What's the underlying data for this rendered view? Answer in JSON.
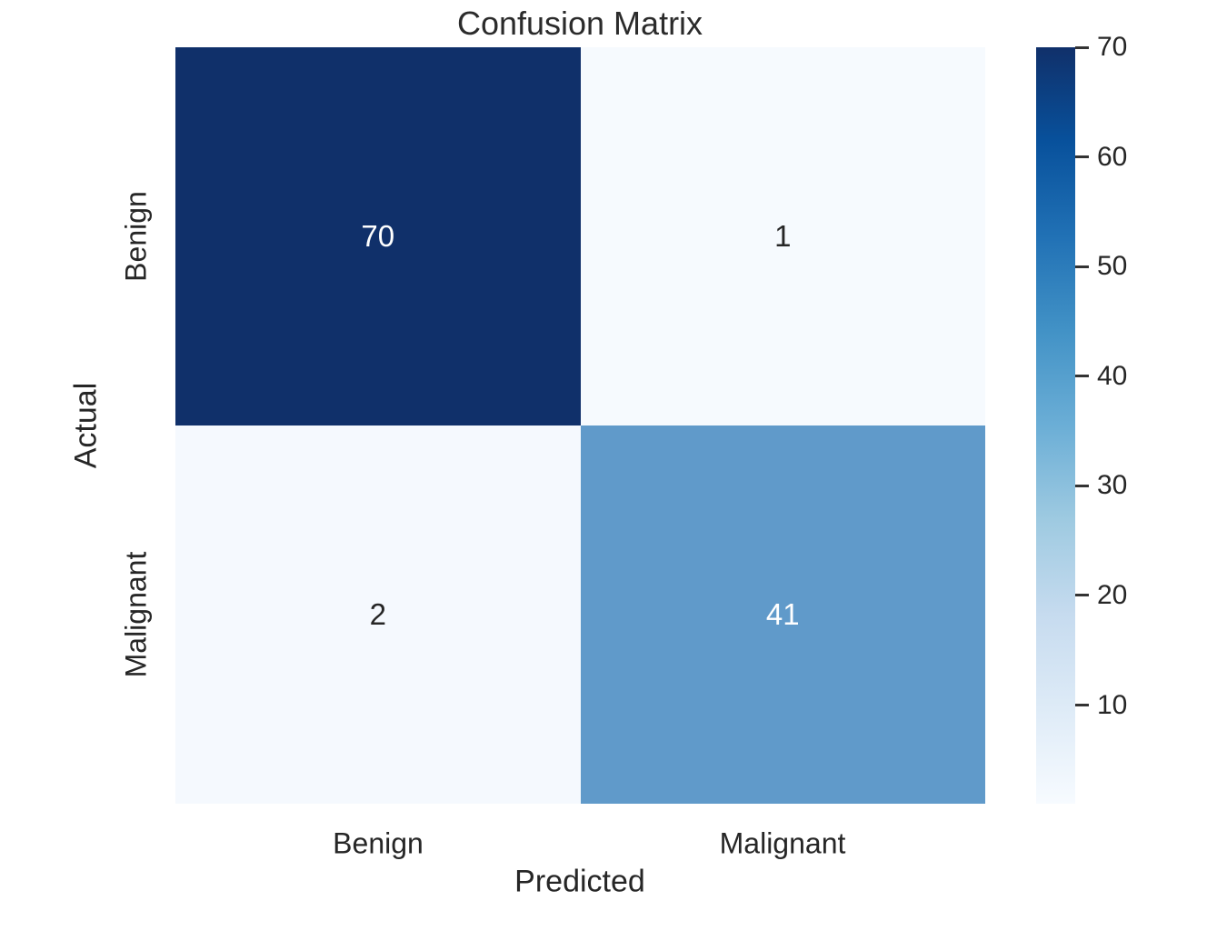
{
  "chart_data": {
    "type": "heatmap",
    "title": "Confusion Matrix",
    "xlabel": "Predicted",
    "ylabel": "Actual",
    "x_categories": [
      "Benign",
      "Malignant"
    ],
    "y_categories": [
      "Benign",
      "Malignant"
    ],
    "values": [
      [
        70,
        1
      ],
      [
        2,
        41
      ]
    ],
    "vmin": 1,
    "vmax": 70,
    "colormap": "Blues",
    "grid": false,
    "legend_position": "right-colorbar",
    "colorbar_ticks": [
      70,
      60,
      50,
      40,
      30,
      20,
      10
    ],
    "colorbar_gradient": [
      "#10306a",
      "#08519c",
      "#2171b5",
      "#4292c6",
      "#6baed6",
      "#9ecae1",
      "#c6dbef",
      "#deebf7",
      "#f7fbff"
    ],
    "cells": [
      {
        "actual": "Benign",
        "predicted": "Benign",
        "value": 70,
        "bg": "#10306a",
        "fg": "#ffffff"
      },
      {
        "actual": "Benign",
        "predicted": "Malignant",
        "value": 1,
        "bg": "#f6fafe",
        "fg": "#262626"
      },
      {
        "actual": "Malignant",
        "predicted": "Benign",
        "value": 2,
        "bg": "#f5f9fe",
        "fg": "#262626"
      },
      {
        "actual": "Malignant",
        "predicted": "Malignant",
        "value": 41,
        "bg": "#609aca",
        "fg": "#ffffff"
      }
    ],
    "colors": {
      "text": "#262626",
      "title": "#2b2b2b",
      "tick_mark": "#333333",
      "background": "#ffffff"
    }
  }
}
